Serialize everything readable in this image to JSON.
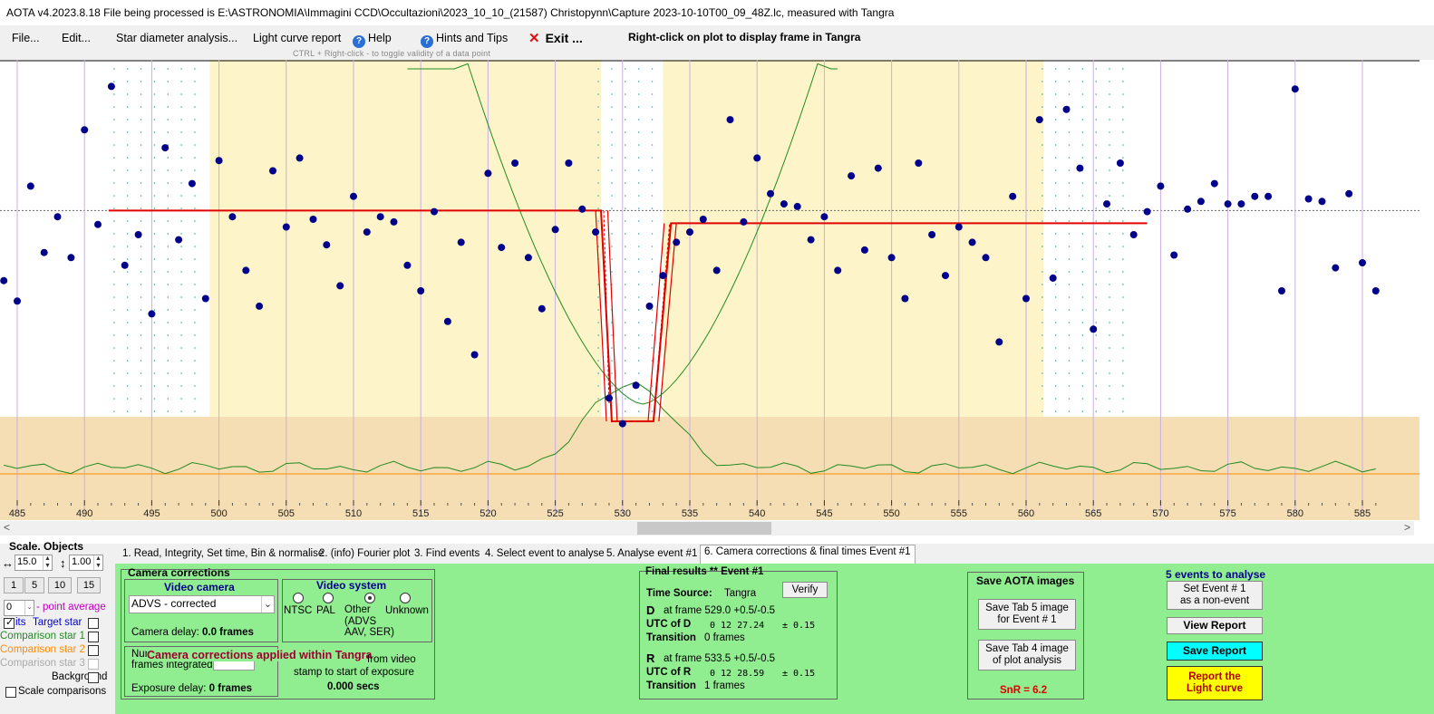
{
  "window": {
    "title": "AOTA v4.2023.8.18    File being processed is E:\\ASTRONOMIA\\Immagini CCD\\Occultazioni\\2023_10_10_(21587) Christopynn\\Capture 2023-10-10T00_09_48Z.lc, measured with Tangra"
  },
  "menu": {
    "file": "File...",
    "edit": "Edit...",
    "star_diameter": "Star diameter analysis...",
    "light_curve_report": "Light curve report",
    "help": "Help",
    "hints": "Hints and Tips",
    "exit": "Exit ...",
    "right_click_hint": "Right-click on plot to display frame in Tangra",
    "ctrl_hint": "CTRL + Right-click  -  to toggle validity of a data point"
  },
  "plot": {
    "frames": [
      484,
      485,
      486,
      487,
      488,
      489,
      490,
      491,
      492,
      493,
      494,
      495,
      496,
      497,
      498,
      499,
      500,
      501,
      502,
      503,
      504,
      505,
      506,
      507,
      508,
      509,
      510,
      511,
      512,
      513,
      514,
      515,
      516,
      517,
      518,
      519,
      520,
      521,
      522,
      523,
      524,
      525,
      526,
      527,
      528,
      529,
      530,
      531,
      532,
      533,
      534,
      535,
      536,
      537,
      538,
      539,
      540,
      541,
      542,
      543,
      544,
      545,
      546,
      547,
      548,
      549,
      550,
      551,
      552,
      553,
      554,
      555,
      556,
      557,
      558,
      559,
      560,
      561,
      562,
      563,
      564,
      565,
      566,
      567,
      568,
      569,
      570,
      571,
      572,
      573,
      574,
      575,
      576,
      577,
      578,
      579,
      580,
      581,
      582,
      583,
      584,
      585,
      586
    ],
    "target_values": [
      0.54,
      0.46,
      0.91,
      0.65,
      0.79,
      0.63,
      1.13,
      0.76,
      1.3,
      0.6,
      0.72,
      0.41,
      1.06,
      0.7,
      0.92,
      0.47,
      1.01,
      0.79,
      0.58,
      0.44,
      0.97,
      0.75,
      1.02,
      0.78,
      0.68,
      0.52,
      0.87,
      0.73,
      0.79,
      0.77,
      0.6,
      0.5,
      0.81,
      0.38,
      0.69,
      0.25,
      0.96,
      0.67,
      1.0,
      0.63,
      0.43,
      0.74,
      1.0,
      0.82,
      0.73,
      0.08,
      -0.02,
      0.13,
      0.44,
      0.56,
      0.69,
      0.73,
      0.78,
      0.58,
      1.17,
      0.77,
      1.02,
      0.88,
      0.84,
      0.83,
      0.7,
      0.79,
      0.58,
      0.95,
      0.66,
      0.98,
      0.63,
      0.47,
      1.0,
      0.72,
      0.56,
      0.75,
      0.69,
      0.63,
      0.3,
      0.87,
      0.47,
      1.17,
      0.55,
      1.21,
      0.98,
      0.35,
      0.84,
      1.0,
      0.72,
      0.81,
      0.91,
      0.64,
      0.82,
      0.85,
      0.92,
      0.84,
      0.84,
      0.87,
      0.87,
      0.5,
      1.29,
      0.86,
      0.85,
      0.59,
      0.88,
      0.61,
      0.5
    ],
    "model_baseline": 0.8,
    "model_bottom": 0.0,
    "d_frame": 529.0,
    "r_frame": 533.5,
    "x_ticks": [
      485,
      490,
      495,
      500,
      505,
      510,
      515,
      520,
      525,
      530,
      535,
      540,
      545,
      550,
      555,
      560,
      565,
      570,
      575,
      580,
      585
    ],
    "colors": {
      "highlight": "#fdf5c9",
      "lower_band": "#f5deb3",
      "points": "#00008b",
      "model": "#e00000",
      "green_curve": "#228b22",
      "orange_line": "#ff8c00"
    }
  },
  "left_panel": {
    "heading": "Scale.  Objects",
    "h_scale": "15.0",
    "v_scale": "1.00",
    "scale_buttons": [
      "1",
      "5",
      "10",
      "15"
    ],
    "avg_value": "0",
    "avg_label": "- point average",
    "obj_prefix": "its",
    "target": "Target star",
    "comp1": "Comparison star 1",
    "comp2": "Comparison star 2",
    "comp3": "Comparison star 3",
    "background": "Background",
    "scale_comp": "Scale comparisons"
  },
  "tabs": [
    "1.  Read, Integrity, Set time, Bin & normalise",
    "2. (info)  Fourier plot",
    "3. Find events",
    "4. Select event to analyse",
    "5.  Analyse event #1",
    "6. Camera corrections & final times Event #1"
  ],
  "camera": {
    "title": "Camera corrections",
    "video_camera": "Video camera",
    "camera_select": "ADVS - corrected",
    "camera_delay_label": "Camera delay: ",
    "camera_delay_value": "0.0 frames",
    "video_system": "Video system",
    "ntsc": "NTSC",
    "pal": "PAL",
    "other": "Other",
    "other_detail": "(ADVS\nAAV, SER)",
    "unknown": "Unknown",
    "frames_integrated_1": "Num",
    "frames_integrated_2": "frames integrated",
    "applied_banner": "Camera corrections applied within Tangra",
    "from_video": "from video",
    "stamp_text": "stamp to start of exposure",
    "offset_value": "0.000 secs",
    "exposure_delay_label": "Exposure delay: ",
    "exposure_delay_value": "0 frames"
  },
  "final": {
    "title": "Final results   **   Event  #1",
    "verify": "Verify",
    "time_source_label": "Time Source:",
    "time_source_value": "Tangra",
    "d_label": "D",
    "d_frame_text": "at frame 529.0  +0.5/-0.5",
    "utc_d_label": "UTC of D",
    "utc_d_value": "0  12  27.24",
    "utc_d_err": "± 0.15",
    "transition_label": "Transition",
    "transition_d": "0 frames",
    "r_label": "R",
    "r_frame_text": "at frame 533.5  +0.5/-0.5",
    "utc_r_label": "UTC of R",
    "utc_r_value": "0  12  28.59",
    "utc_r_err": "± 0.15",
    "transition_r": "1 frames"
  },
  "save_images": {
    "title": "Save AOTA images",
    "btn_tab5": "Save Tab 5 image\nfor Event # 1",
    "btn_tab4": "Save Tab 4 image\nof plot analysis",
    "snr": "SnR = 6.2"
  },
  "report": {
    "events_count": "5  events to analyse",
    "non_event": "Set Event # 1\nas a non-event",
    "view_report": "View Report",
    "save_report": "Save Report",
    "report_lc": "Report the\nLight curve",
    "colors": {
      "save": "#00ffff",
      "report": "#ffff00",
      "snr": "#e00000",
      "events": "#00008b"
    }
  }
}
